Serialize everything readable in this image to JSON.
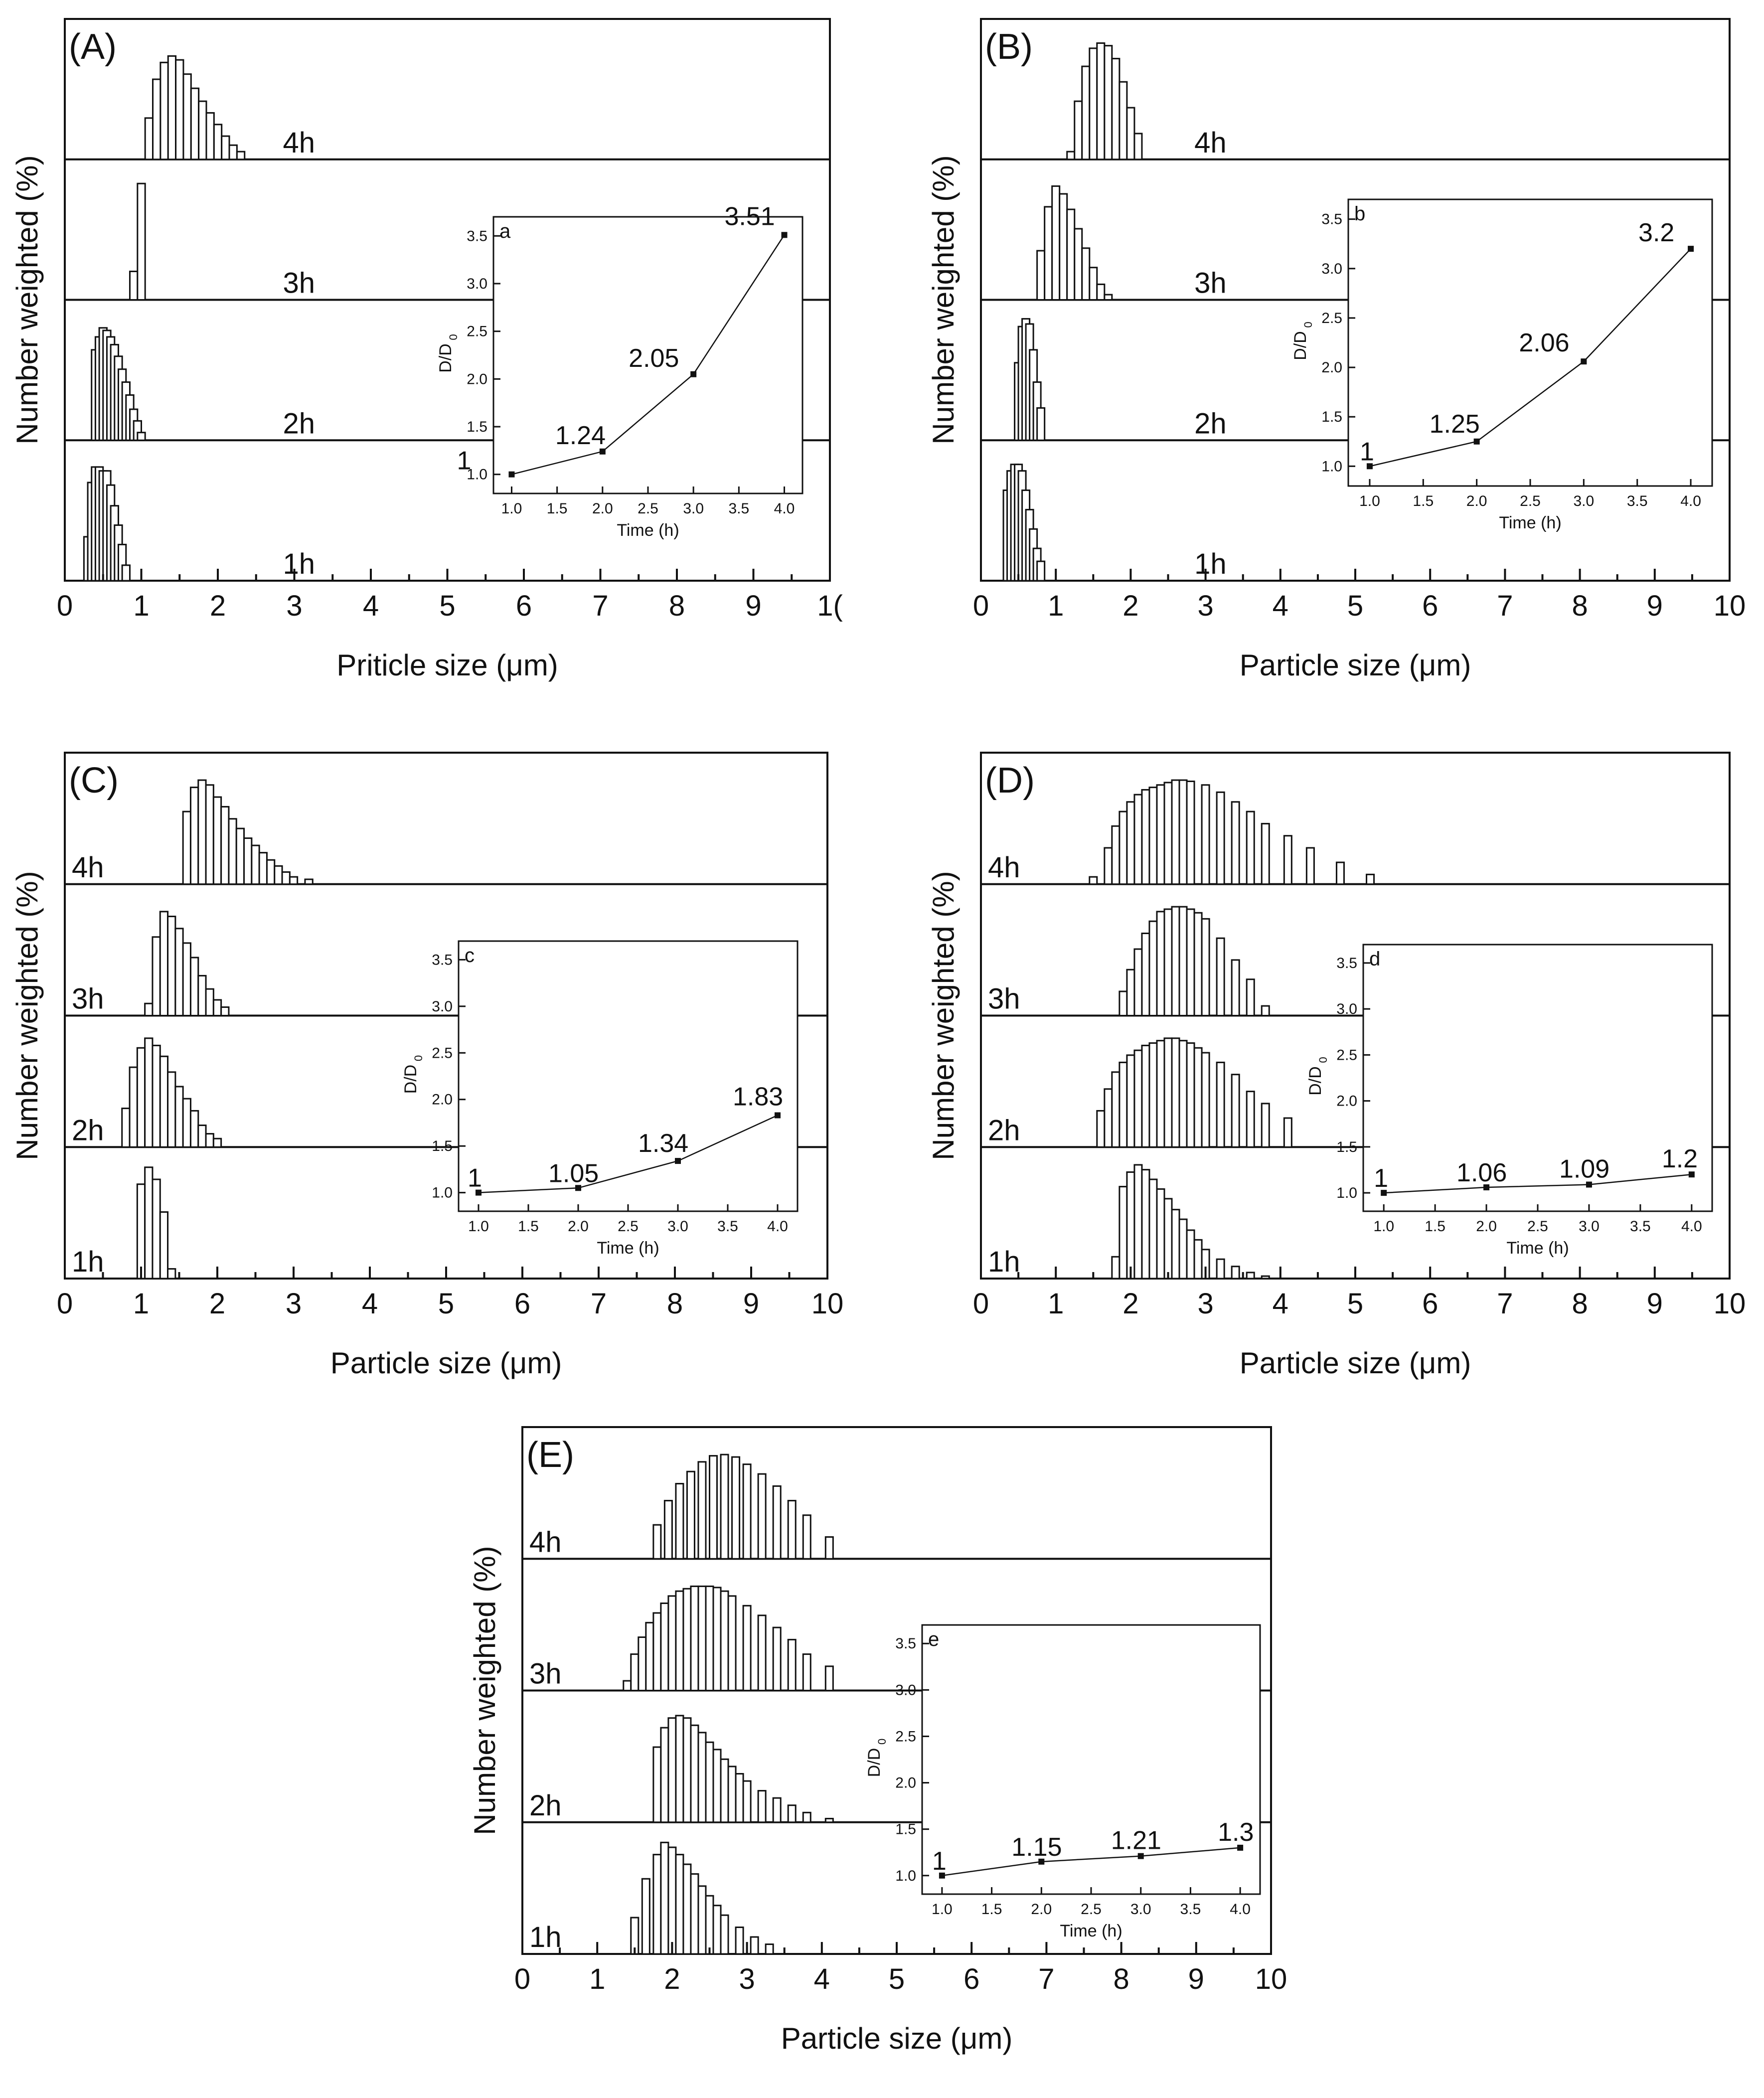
{
  "colors": {
    "axis": "#111111",
    "bar_fill": "#ffffff",
    "bar_stroke": "#111111",
    "background": "#ffffff"
  },
  "chart_data": [
    {
      "type": "bar",
      "panel": "A",
      "title": "(A)",
      "xlabel": "Priticle size (μm)",
      "ylabel": "Number weighted (%)",
      "xlim": [
        0,
        10
      ],
      "xticks": [
        "0",
        "1",
        "2",
        "3",
        "4",
        "5",
        "6",
        "7",
        "8",
        "9",
        "1("
      ],
      "bar_width": 0.1,
      "series": [
        {
          "name": "4h",
          "x": [
            1.1,
            1.2,
            1.3,
            1.4,
            1.5,
            1.6,
            1.7,
            1.8,
            1.9,
            2.0,
            2.1,
            2.2,
            2.3
          ],
          "values": [
            32,
            62,
            75,
            80,
            77,
            66,
            55,
            45,
            36,
            27,
            18,
            11,
            6
          ]
        },
        {
          "name": "3h",
          "x": [
            0.9,
            1.0
          ],
          "values": [
            22,
            90
          ]
        },
        {
          "name": "2h",
          "x": [
            0.4,
            0.45,
            0.5,
            0.55,
            0.6,
            0.65,
            0.7,
            0.75,
            0.8,
            0.85,
            0.9,
            0.95,
            1.0
          ],
          "values": [
            70,
            80,
            87,
            85,
            80,
            74,
            65,
            55,
            45,
            35,
            24,
            15,
            6
          ]
        },
        {
          "name": "1h",
          "x": [
            0.3,
            0.35,
            0.4,
            0.45,
            0.5,
            0.55,
            0.6,
            0.65,
            0.7,
            0.75,
            0.8
          ],
          "values": [
            34,
            76,
            88,
            88,
            85,
            85,
            74,
            58,
            43,
            28,
            12
          ]
        }
      ],
      "inset": {
        "label": "a",
        "xlabel": "Time (h)",
        "ylabel": "D/D",
        "ylabel_sub": "0",
        "xlim": [
          0.8,
          4.2
        ],
        "ylim": [
          0.8,
          3.7
        ],
        "xticks": [
          "1.0",
          "1.5",
          "2.0",
          "2.5",
          "3.0",
          "3.5",
          "4.0"
        ],
        "yticks": [
          "1.0",
          "1.5",
          "2.0",
          "2.5",
          "3.0",
          "3.5"
        ],
        "x": [
          1,
          2,
          3,
          4
        ],
        "y": [
          1,
          1.24,
          2.05,
          3.51
        ],
        "point_labels": [
          "1",
          "1.24",
          "2.05",
          "3.51"
        ]
      }
    },
    {
      "type": "bar",
      "panel": "B",
      "title": "(B)",
      "xlabel": "Particle size (μm)",
      "ylabel": "Number weighted (%)",
      "xlim": [
        0,
        10
      ],
      "xticks": [
        "0",
        "1",
        "2",
        "3",
        "4",
        "5",
        "6",
        "7",
        "8",
        "9",
        "10"
      ],
      "bar_width": 0.1,
      "series": [
        {
          "name": "4h",
          "x": [
            1.2,
            1.3,
            1.4,
            1.5,
            1.6,
            1.7,
            1.8,
            1.9,
            2.0,
            2.1
          ],
          "values": [
            6,
            45,
            72,
            86,
            90,
            88,
            78,
            60,
            40,
            20
          ]
        },
        {
          "name": "3h",
          "x": [
            0.8,
            0.9,
            1.0,
            1.1,
            1.2,
            1.3,
            1.4,
            1.5,
            1.6,
            1.7
          ],
          "values": [
            38,
            72,
            88,
            82,
            70,
            55,
            40,
            25,
            12,
            4
          ]
        },
        {
          "name": "2h",
          "x": [
            0.5,
            0.55,
            0.6,
            0.65,
            0.7,
            0.75,
            0.8
          ],
          "values": [
            60,
            88,
            94,
            90,
            70,
            45,
            25
          ]
        },
        {
          "name": "1h",
          "x": [
            0.35,
            0.4,
            0.45,
            0.5,
            0.55,
            0.6,
            0.65,
            0.7,
            0.75,
            0.8
          ],
          "values": [
            70,
            85,
            90,
            90,
            85,
            70,
            55,
            40,
            25,
            15
          ]
        }
      ],
      "inset": {
        "label": "b",
        "xlabel": "Time (h)",
        "ylabel": "D/D",
        "ylabel_sub": "0",
        "xlim": [
          0.8,
          4.2
        ],
        "ylim": [
          0.8,
          3.7
        ],
        "xticks": [
          "1.0",
          "1.5",
          "2.0",
          "2.5",
          "3.0",
          "3.5",
          "4.0"
        ],
        "yticks": [
          "1.0",
          "1.5",
          "2.0",
          "2.5",
          "3.0",
          "3.5"
        ],
        "x": [
          1,
          2,
          3,
          4
        ],
        "y": [
          1,
          1.25,
          2.06,
          3.2
        ],
        "point_labels": [
          "1",
          "1.25",
          "2.06",
          "3.2"
        ]
      }
    },
    {
      "type": "bar",
      "panel": "C",
      "title": "(C)",
      "xlabel": "Particle size (μm)",
      "ylabel": "Number weighted (%)",
      "xlim": [
        0,
        10
      ],
      "xticks": [
        "0",
        "1",
        "2",
        "3",
        "4",
        "5",
        "6",
        "7",
        "8",
        "9",
        "10"
      ],
      "bar_width": 0.1,
      "series": [
        {
          "name": "4h",
          "x": [
            1.6,
            1.7,
            1.8,
            1.9,
            2.0,
            2.1,
            2.2,
            2.3,
            2.4,
            2.5,
            2.6,
            2.7,
            2.8,
            2.9,
            3.0,
            3.2
          ],
          "values": [
            60,
            80,
            86,
            82,
            72,
            64,
            54,
            46,
            38,
            32,
            26,
            20,
            15,
            10,
            6,
            4
          ]
        },
        {
          "name": "3h",
          "x": [
            1.1,
            1.2,
            1.3,
            1.4,
            1.5,
            1.6,
            1.7,
            1.8,
            1.9,
            2.0,
            2.1
          ],
          "values": [
            10,
            65,
            86,
            82,
            72,
            60,
            48,
            33,
            22,
            13,
            7
          ]
        },
        {
          "name": "2h",
          "x": [
            0.8,
            0.9,
            1.0,
            1.1,
            1.2,
            1.3,
            1.4,
            1.5,
            1.6,
            1.7,
            1.8,
            1.9,
            2.0
          ],
          "values": [
            32,
            66,
            82,
            90,
            84,
            75,
            62,
            50,
            40,
            30,
            18,
            11,
            7
          ]
        },
        {
          "name": "1h",
          "x": [
            1.0,
            1.1,
            1.2,
            1.3,
            1.4
          ],
          "values": [
            78,
            92,
            82,
            55,
            8
          ]
        }
      ],
      "inset": {
        "label": "c",
        "xlabel": "Time (h)",
        "ylabel": "D/D",
        "ylabel_sub": "0",
        "xlim": [
          0.8,
          4.2
        ],
        "ylim": [
          0.8,
          3.7
        ],
        "xticks": [
          "1.0",
          "1.5",
          "2.0",
          "2.5",
          "3.0",
          "3.5",
          "4.0"
        ],
        "yticks": [
          "1.0",
          "1.5",
          "2.0",
          "2.5",
          "3.0",
          "3.5"
        ],
        "x": [
          1,
          2,
          3,
          4
        ],
        "y": [
          1,
          1.05,
          1.34,
          1.83
        ],
        "point_labels": [
          "1",
          "1.05",
          "1.34",
          "1.83"
        ]
      }
    },
    {
      "type": "bar",
      "panel": "D",
      "title": "(D)",
      "xlabel": "Particle size (μm)",
      "ylabel": "Number weighted (%)",
      "xlim": [
        0,
        10
      ],
      "xticks": [
        "0",
        "1",
        "2",
        "3",
        "4",
        "5",
        "6",
        "7",
        "8",
        "9",
        "10"
      ],
      "bar_width": 0.1,
      "series": [
        {
          "name": "4h",
          "x": [
            1.5,
            1.7,
            1.8,
            1.9,
            2.0,
            2.1,
            2.2,
            2.3,
            2.4,
            2.5,
            2.6,
            2.7,
            2.8,
            3.0,
            3.2,
            3.4,
            3.6,
            3.8,
            4.1,
            4.4,
            4.8,
            5.2
          ],
          "values": [
            6,
            30,
            48,
            60,
            68,
            74,
            78,
            80,
            82,
            84,
            86,
            86,
            85,
            82,
            76,
            68,
            60,
            50,
            40,
            30,
            18,
            8
          ]
        },
        {
          "name": "3h",
          "x": [
            1.9,
            2.0,
            2.1,
            2.2,
            2.3,
            2.4,
            2.5,
            2.6,
            2.7,
            2.8,
            2.9,
            3.0,
            3.2,
            3.4,
            3.6,
            3.8
          ],
          "values": [
            20,
            38,
            55,
            68,
            78,
            86,
            88,
            90,
            90,
            88,
            85,
            80,
            64,
            46,
            30,
            8
          ]
        },
        {
          "name": "2h",
          "x": [
            1.6,
            1.7,
            1.8,
            1.9,
            2.0,
            2.1,
            2.2,
            2.3,
            2.4,
            2.5,
            2.6,
            2.7,
            2.8,
            2.9,
            3.0,
            3.2,
            3.4,
            3.6,
            3.8,
            4.1
          ],
          "values": [
            30,
            48,
            62,
            70,
            76,
            80,
            84,
            86,
            88,
            90,
            90,
            88,
            86,
            82,
            78,
            70,
            60,
            46,
            36,
            24
          ]
        },
        {
          "name": "1h",
          "x": [
            1.8,
            1.9,
            2.0,
            2.1,
            2.2,
            2.3,
            2.4,
            2.5,
            2.6,
            2.7,
            2.8,
            2.9,
            3.0,
            3.2,
            3.4,
            3.6,
            3.8
          ],
          "values": [
            18,
            76,
            88,
            94,
            90,
            82,
            74,
            66,
            57,
            49,
            40,
            32,
            24,
            16,
            10,
            5,
            2
          ]
        }
      ],
      "inset": {
        "label": "d",
        "xlabel": "Time (h)",
        "ylabel": "D/D",
        "ylabel_sub": "0",
        "xlim": [
          0.8,
          4.2
        ],
        "ylim": [
          0.8,
          3.7
        ],
        "xticks": [
          "1.0",
          "1.5",
          "2.0",
          "2.5",
          "3.0",
          "3.5",
          "4.0"
        ],
        "yticks": [
          "1.0",
          "1.5",
          "2.0",
          "2.5",
          "3.0",
          "3.5"
        ],
        "x": [
          1,
          2,
          3,
          4
        ],
        "y": [
          1,
          1.06,
          1.09,
          1.2
        ],
        "point_labels": [
          "1",
          "1.06",
          "1.09",
          "1.2"
        ]
      }
    },
    {
      "type": "bar",
      "panel": "E",
      "title": "(E)",
      "xlabel": "Particle size (μm)",
      "ylabel": "Number weighted (%)",
      "xlim": [
        0,
        10
      ],
      "xticks": [
        "0",
        "1",
        "2",
        "3",
        "4",
        "5",
        "6",
        "7",
        "8",
        "9",
        "10"
      ],
      "bar_width": 0.1,
      "series": [
        {
          "name": "4h",
          "x": [
            1.8,
            1.95,
            2.1,
            2.25,
            2.4,
            2.55,
            2.7,
            2.85,
            3.0,
            3.2,
            3.4,
            3.6,
            3.8,
            4.1
          ],
          "values": [
            28,
            48,
            62,
            72,
            80,
            85,
            86,
            84,
            78,
            70,
            60,
            48,
            36,
            18
          ]
        },
        {
          "name": "3h",
          "x": [
            1.4,
            1.5,
            1.6,
            1.7,
            1.8,
            1.9,
            2.0,
            2.1,
            2.2,
            2.3,
            2.4,
            2.5,
            2.6,
            2.7,
            2.8,
            3.0,
            3.2,
            3.4,
            3.6,
            3.8,
            4.1
          ],
          "values": [
            8,
            30,
            44,
            56,
            64,
            72,
            78,
            82,
            84,
            86,
            86,
            86,
            85,
            82,
            78,
            70,
            62,
            52,
            42,
            30,
            20
          ]
        },
        {
          "name": "2h",
          "x": [
            1.8,
            1.9,
            2.0,
            2.1,
            2.2,
            2.3,
            2.4,
            2.5,
            2.6,
            2.7,
            2.8,
            2.9,
            3.0,
            3.2,
            3.4,
            3.6,
            3.8,
            4.1
          ],
          "values": [
            62,
            78,
            86,
            88,
            86,
            80,
            74,
            66,
            60,
            52,
            46,
            40,
            34,
            26,
            20,
            14,
            8,
            3
          ]
        },
        {
          "name": "1h",
          "x": [
            1.5,
            1.65,
            1.8,
            1.9,
            2.0,
            2.1,
            2.2,
            2.3,
            2.4,
            2.5,
            2.6,
            2.7,
            2.9,
            3.1,
            3.3
          ],
          "values": [
            30,
            62,
            82,
            92,
            88,
            82,
            74,
            66,
            56,
            48,
            40,
            32,
            22,
            14,
            8
          ]
        }
      ],
      "inset": {
        "label": "e",
        "xlabel": "Time (h)",
        "ylabel": "D/D",
        "ylabel_sub": "0",
        "xlim": [
          0.8,
          4.2
        ],
        "ylim": [
          0.8,
          3.7
        ],
        "xticks": [
          "1.0",
          "1.5",
          "2.0",
          "2.5",
          "3.0",
          "3.5",
          "4.0"
        ],
        "yticks": [
          "1.0",
          "1.5",
          "2.0",
          "2.5",
          "3.0",
          "3.5"
        ],
        "x": [
          1,
          2,
          3,
          4
        ],
        "y": [
          1,
          1.15,
          1.21,
          1.3
        ],
        "point_labels": [
          "1",
          "1.15",
          "1.21",
          "1.3"
        ]
      }
    }
  ]
}
